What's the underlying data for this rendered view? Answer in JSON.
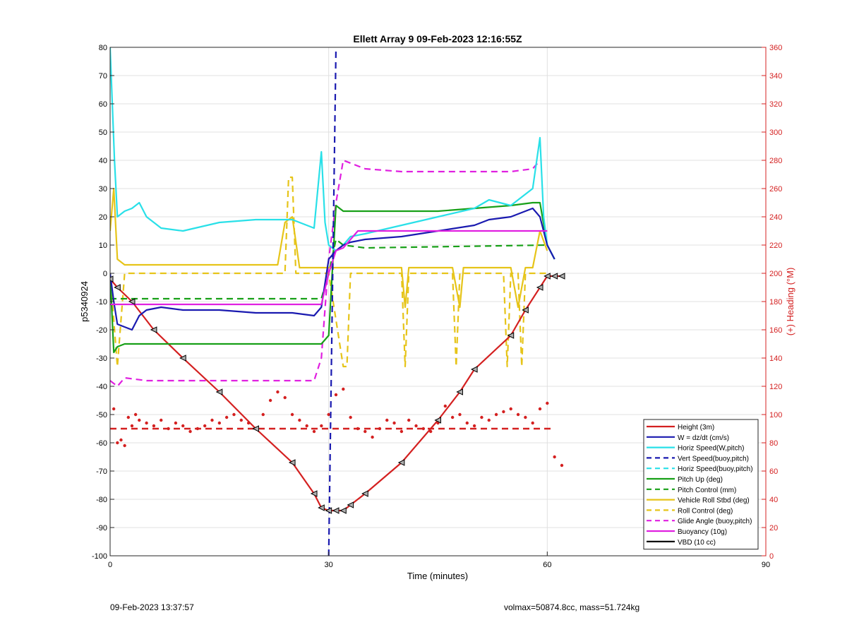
{
  "footer": {
    "left": "09-Feb-2023 13:37:57",
    "right": "volmax=50874.8cc, mass=51.724kg"
  },
  "chart_data": {
    "type": "line",
    "title": "Ellett Array 9 09-Feb-2023 12:16:55Z",
    "xlabel": "Time (minutes)",
    "ylabel": "p5340924",
    "y2label": "(+) Heading (°M)",
    "xlim": [
      0,
      90
    ],
    "ylim": [
      -100,
      80
    ],
    "y2lim": [
      0,
      360
    ],
    "xticks": [
      "0",
      "30",
      "60",
      "90"
    ],
    "yticks": [
      "80",
      "70",
      "60",
      "50",
      "40",
      "30",
      "20",
      "10",
      "0",
      "-10",
      "-20",
      "-30",
      "-40",
      "-50",
      "-60",
      "-70",
      "-80",
      "-90",
      "-100"
    ],
    "y2ticks": [
      "360",
      "340",
      "320",
      "300",
      "280",
      "260",
      "240",
      "220",
      "200",
      "180",
      "160",
      "140",
      "120",
      "100",
      "80",
      "60",
      "40",
      "20",
      "0"
    ],
    "grid": true,
    "legend_position": "bottom-right",
    "colors": {
      "red": "#d42020",
      "blue": "#1a1ab0",
      "cyan": "#29e0e8",
      "green": "#18a018",
      "yellow": "#e6c419",
      "magenta": "#e020e0",
      "black": "#000000",
      "right_axis": "#d42020",
      "grid": "#e0e0e0"
    },
    "series": [
      {
        "name": "Height (3m)",
        "color": "red",
        "dash": false,
        "marker": "triangle",
        "x": [
          0,
          1,
          3,
          6,
          10,
          15,
          20,
          25,
          28,
          29,
          30,
          31,
          32,
          33,
          35,
          40,
          45,
          48,
          50,
          55,
          57,
          59,
          60,
          61,
          62
        ],
        "y": [
          -2,
          -5,
          -10,
          -20,
          -30,
          -42,
          -55,
          -67,
          -78,
          -83,
          -84,
          -84,
          -84,
          -82,
          -78,
          -67,
          -52,
          -42,
          -34,
          -22,
          -13,
          -5,
          -1,
          -1,
          -1
        ]
      },
      {
        "name": "W = dz/dt (cm/s)",
        "color": "blue",
        "dash": false,
        "x": [
          0,
          0.5,
          1,
          2,
          3,
          4,
          5,
          7,
          10,
          15,
          20,
          25,
          28,
          29,
          30,
          31,
          32,
          33,
          35,
          40,
          45,
          50,
          52,
          55,
          58,
          59,
          60,
          61
        ],
        "y": [
          0,
          -10,
          -18,
          -19,
          -20,
          -15,
          -13,
          -12,
          -13,
          -13,
          -14,
          -14,
          -15,
          -12,
          5,
          8,
          10,
          11,
          12,
          13,
          15,
          17,
          19,
          20,
          23,
          20,
          10,
          5
        ]
      },
      {
        "name": "Horiz Speed(W,pitch)",
        "color": "cyan",
        "dash": false,
        "x": [
          0,
          0.3,
          0.6,
          1,
          2,
          3,
          4,
          5,
          7,
          10,
          15,
          20,
          25,
          28,
          29,
          29.5,
          30,
          31,
          32,
          33,
          35,
          40,
          45,
          50,
          52,
          55,
          58,
          59,
          59.5,
          60,
          61
        ],
        "y": [
          80,
          60,
          40,
          20,
          22,
          23,
          25,
          20,
          16,
          15,
          18,
          19,
          19,
          16,
          43,
          18,
          10,
          8,
          10,
          13,
          14,
          17,
          20,
          23,
          26,
          24,
          30,
          48,
          20,
          10,
          5
        ]
      },
      {
        "name": "Vert Speed(buoy,pitch)",
        "color": "blue",
        "dash": true,
        "x": [
          30,
          30.5,
          31
        ],
        "y": [
          -100,
          -10,
          80
        ]
      },
      {
        "name": "Horiz Speed(buoy,pitch)",
        "color": "cyan",
        "dash": true,
        "x": [],
        "y": []
      },
      {
        "name": "Pitch Up (deg)",
        "color": "green",
        "dash": false,
        "x": [
          0,
          0.5,
          1,
          2,
          5,
          10,
          15,
          20,
          25,
          28,
          29,
          30,
          31,
          32,
          35,
          40,
          45,
          50,
          55,
          58,
          59,
          60,
          61
        ],
        "y": [
          0,
          -28,
          -26,
          -25,
          -25,
          -25,
          -25,
          -25,
          -25,
          -25,
          -25,
          -22,
          24,
          22,
          22,
          22,
          22,
          23,
          24,
          25,
          25,
          10,
          5
        ]
      },
      {
        "name": "Pitch Control (mm)",
        "color": "green",
        "dash": true,
        "x": [
          0,
          1,
          29,
          30,
          31,
          32,
          35,
          60
        ],
        "y": [
          -9,
          -9,
          -9,
          0,
          12,
          10,
          9,
          10
        ]
      },
      {
        "name": "Vehicle Roll Stbd (deg)",
        "color": "yellow",
        "dash": false,
        "x": [
          0,
          0.5,
          1,
          2,
          5,
          10,
          20,
          23,
          24,
          25,
          26,
          28,
          29,
          30,
          31,
          32,
          35,
          38,
          40,
          40.5,
          41,
          45,
          47,
          48,
          48.5,
          50,
          55,
          56,
          57,
          58,
          59,
          60
        ],
        "y": [
          15,
          30,
          5,
          3,
          3,
          3,
          3,
          3,
          18,
          20,
          2,
          2,
          2,
          2,
          2,
          2,
          2,
          2,
          2,
          -12,
          2,
          2,
          2,
          -12,
          2,
          2,
          2,
          -12,
          2,
          2,
          15,
          8
        ]
      },
      {
        "name": "Roll Control (deg)",
        "color": "yellow",
        "dash": true,
        "x": [
          0,
          1,
          2,
          24,
          24.5,
          25,
          25.5,
          30,
          32,
          32.5,
          33,
          40,
          40.5,
          41,
          47,
          47.5,
          48,
          54,
          54.5,
          55,
          56,
          56.5,
          57,
          60
        ],
        "y": [
          0,
          -33,
          0,
          0,
          34,
          34,
          0,
          0,
          -33,
          -33,
          0,
          0,
          -33,
          0,
          0,
          -33,
          0,
          0,
          -33,
          0,
          0,
          -33,
          0,
          0
        ]
      },
      {
        "name": "Glide Angle (buoy,pitch)",
        "color": "magenta",
        "dash": true,
        "x": [
          0,
          1,
          2,
          5,
          10,
          15,
          20,
          25,
          28,
          29,
          30,
          31,
          32,
          35,
          40,
          45,
          50,
          55,
          58,
          59
        ],
        "y": [
          -38,
          -40,
          -37,
          -38,
          -38,
          -38,
          -38,
          -38,
          -38,
          -30,
          5,
          25,
          40,
          37,
          36,
          36,
          36,
          36,
          37,
          40
        ]
      },
      {
        "name": "Buoyancy (10g)",
        "color": "magenta",
        "dash": false,
        "x": [
          0,
          1,
          29,
          30,
          31,
          32,
          34,
          60
        ],
        "y": [
          -11,
          -11,
          -11,
          0,
          8,
          9,
          15,
          15
        ]
      },
      {
        "name": "VBD (10 cc)",
        "color": "black",
        "dash": false,
        "x": [
          0,
          1,
          29,
          30,
          31,
          32,
          34,
          58,
          59,
          60,
          61,
          62
        ],
        "y": [
          -10,
          -10,
          -10,
          0,
          8,
          9,
          15,
          15,
          15,
          15,
          20,
          26
        ]
      }
    ],
    "heading_points": {
      "name": "Heading",
      "color": "red",
      "axis": "right",
      "mean_heading": 90,
      "x": [
        0.5,
        1,
        1.5,
        2,
        2.5,
        3,
        3.5,
        4,
        5,
        6,
        7,
        8,
        9,
        10,
        11,
        12,
        13,
        14,
        15,
        16,
        17,
        18,
        19,
        20,
        21,
        22,
        23,
        24,
        25,
        26,
        27,
        28,
        29,
        30,
        31,
        32,
        33,
        34,
        35,
        36,
        37,
        38,
        39,
        40,
        41,
        42,
        43,
        44,
        45,
        46,
        47,
        48,
        49,
        50,
        51,
        52,
        53,
        54,
        55,
        56,
        57,
        58,
        59,
        60,
        61,
        62
      ],
      "y": [
        104,
        80,
        82,
        78,
        98,
        92,
        100,
        96,
        94,
        92,
        96,
        90,
        94,
        92,
        88,
        90,
        92,
        96,
        94,
        98,
        100,
        96,
        94,
        90,
        100,
        110,
        116,
        112,
        100,
        96,
        92,
        88,
        92,
        100,
        114,
        118,
        98,
        90,
        88,
        84,
        90,
        96,
        94,
        88,
        96,
        92,
        90,
        88,
        94,
        106,
        98,
        100,
        94,
        92,
        98,
        96,
        100,
        102,
        104,
        100,
        98,
        94,
        104,
        108,
        70,
        64
      ]
    }
  }
}
